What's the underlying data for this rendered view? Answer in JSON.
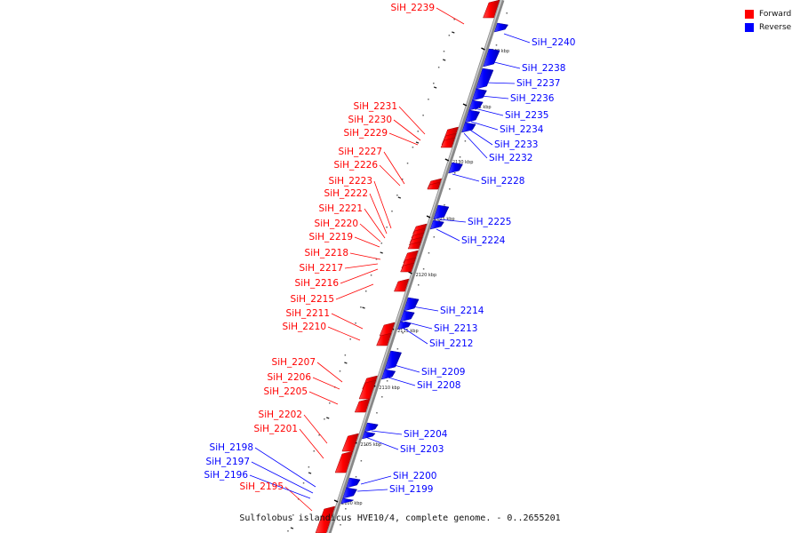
{
  "legend": {
    "forward_label": "Forward",
    "reverse_label": "Reverse",
    "forward_color": "#ff0000",
    "reverse_color": "#0000ff"
  },
  "caption": "Sulfolobus islandicus HVE10/4, complete genome. - 0..2655201",
  "ticks": [
    "2140 kbp",
    "2135 kbp",
    "2130 kbp",
    "2125 kbp",
    "2120 kbp",
    "2115 kbp",
    "2110 kbp",
    "2105 kbp",
    "2100 kbp"
  ],
  "genes_forward": [
    "SiH_2239",
    "SiH_2231",
    "SiH_2230",
    "SiH_2229",
    "SiH_2227",
    "SiH_2226",
    "SiH_2223",
    "SiH_2222",
    "SiH_2221",
    "SiH_2220",
    "SiH_2219",
    "SiH_2218",
    "SiH_2217",
    "SiH_2216",
    "SiH_2215",
    "SiH_2211",
    "SiH_2210",
    "SiH_2207",
    "SiH_2206",
    "SiH_2205",
    "SiH_2202",
    "SiH_2201",
    "SiH_2195"
  ],
  "genes_reverse": [
    "SiH_2240",
    "SiH_2238",
    "SiH_2237",
    "SiH_2236",
    "SiH_2235",
    "SiH_2234",
    "SiH_2233",
    "SiH_2232",
    "SiH_2228",
    "SiH_2225",
    "SiH_2224",
    "SiH_2214",
    "SiH_2213",
    "SiH_2212",
    "SiH_2209",
    "SiH_2208",
    "SiH_2204",
    "SiH_2203",
    "SiH_2200",
    "SiH_2199",
    "SiH_2198",
    "SiH_2197",
    "SiH_2196"
  ]
}
